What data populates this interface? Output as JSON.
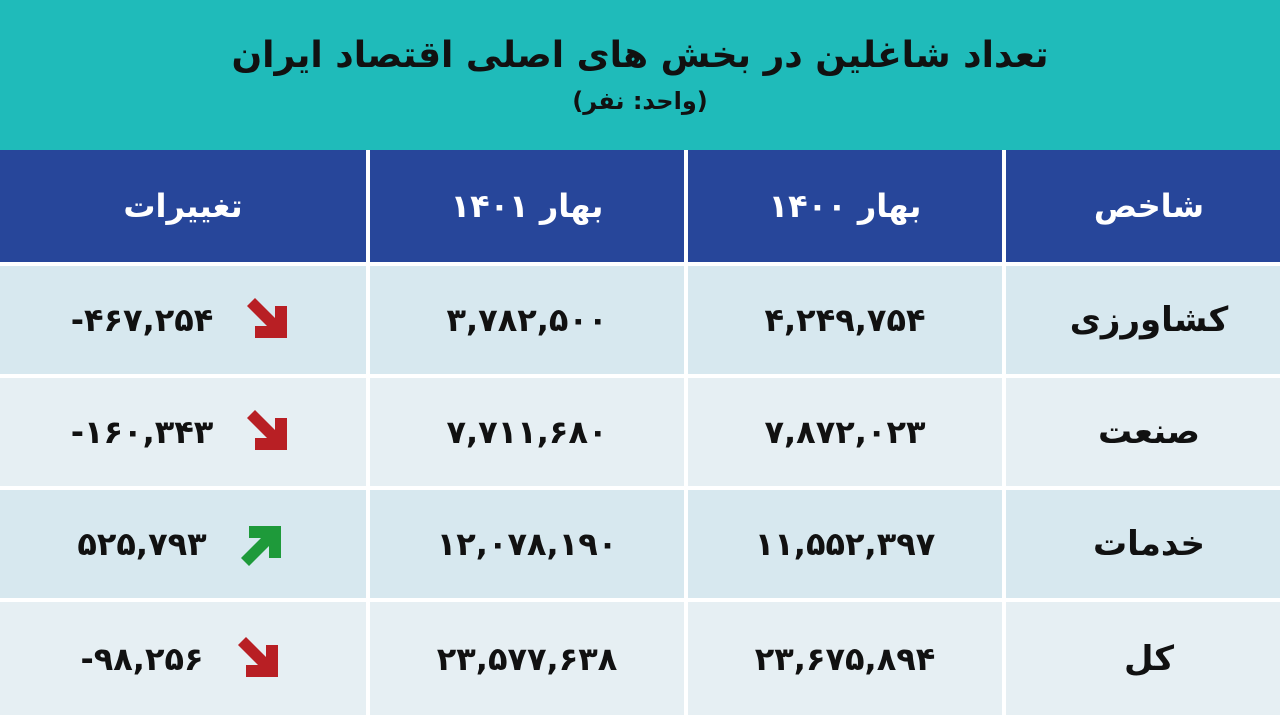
{
  "header": {
    "title": "تعداد شاغلین در بخش های اصلی اقتصاد ایران",
    "subtitle": "(واحد: نفر)"
  },
  "colors": {
    "header_bg": "#1fbbba",
    "table_head_bg": "#27469a",
    "row_bg": "#d7e8ef",
    "arrow_down": "#b81f24",
    "arrow_up": "#1e9a3a"
  },
  "table": {
    "columns": [
      "شاخص",
      "بهار ۱۴۰۰",
      "بهار ۱۴۰۱",
      "تغییرات"
    ],
    "rows": [
      {
        "label": "کشاورزی",
        "spring_1400": "۴,۲۴۹,۷۵۴",
        "spring_1401": "۳,۷۸۲,۵۰۰",
        "change": "-۴۶۷,۲۵۴",
        "trend": "down",
        "trend_icon": "arrow-down-right-icon"
      },
      {
        "label": "صنعت",
        "spring_1400": "۷,۸۷۲,۰۲۳",
        "spring_1401": "۷,۷۱۱,۶۸۰",
        "change": "-۱۶۰,۳۴۳",
        "trend": "down",
        "trend_icon": "arrow-down-right-icon"
      },
      {
        "label": "خدمات",
        "spring_1400": "۱۱,۵۵۲,۳۹۷",
        "spring_1401": "۱۲,۰۷۸,۱۹۰",
        "change": "۵۲۵,۷۹۳",
        "trend": "up",
        "trend_icon": "arrow-up-right-icon"
      },
      {
        "label": "کل",
        "spring_1400": "۲۳,۶۷۵,۸۹۴",
        "spring_1401": "۲۳,۵۷۷,۶۳۸",
        "change": "-۹۸,۲۵۶",
        "trend": "down",
        "trend_icon": "arrow-down-right-icon"
      }
    ]
  },
  "chart_data": {
    "type": "table",
    "title": "تعداد شاغلین در بخش های اصلی اقتصاد ایران",
    "subtitle": "(واحد: نفر)",
    "columns": [
      "شاخص",
      "بهار ۱۴۰۰",
      "بهار ۱۴۰۱",
      "تغییرات"
    ],
    "categories": [
      "کشاورزی",
      "صنعت",
      "خدمات",
      "کل"
    ],
    "series": [
      {
        "name": "بهار ۱۴۰۰",
        "values": [
          4249754,
          7872023,
          11552397,
          23675894
        ]
      },
      {
        "name": "بهار ۱۴۰۱",
        "values": [
          3782500,
          7711680,
          12078190,
          23577638
        ]
      },
      {
        "name": "تغییرات",
        "values": [
          -467254,
          -160343,
          525793,
          -98256
        ]
      }
    ]
  }
}
